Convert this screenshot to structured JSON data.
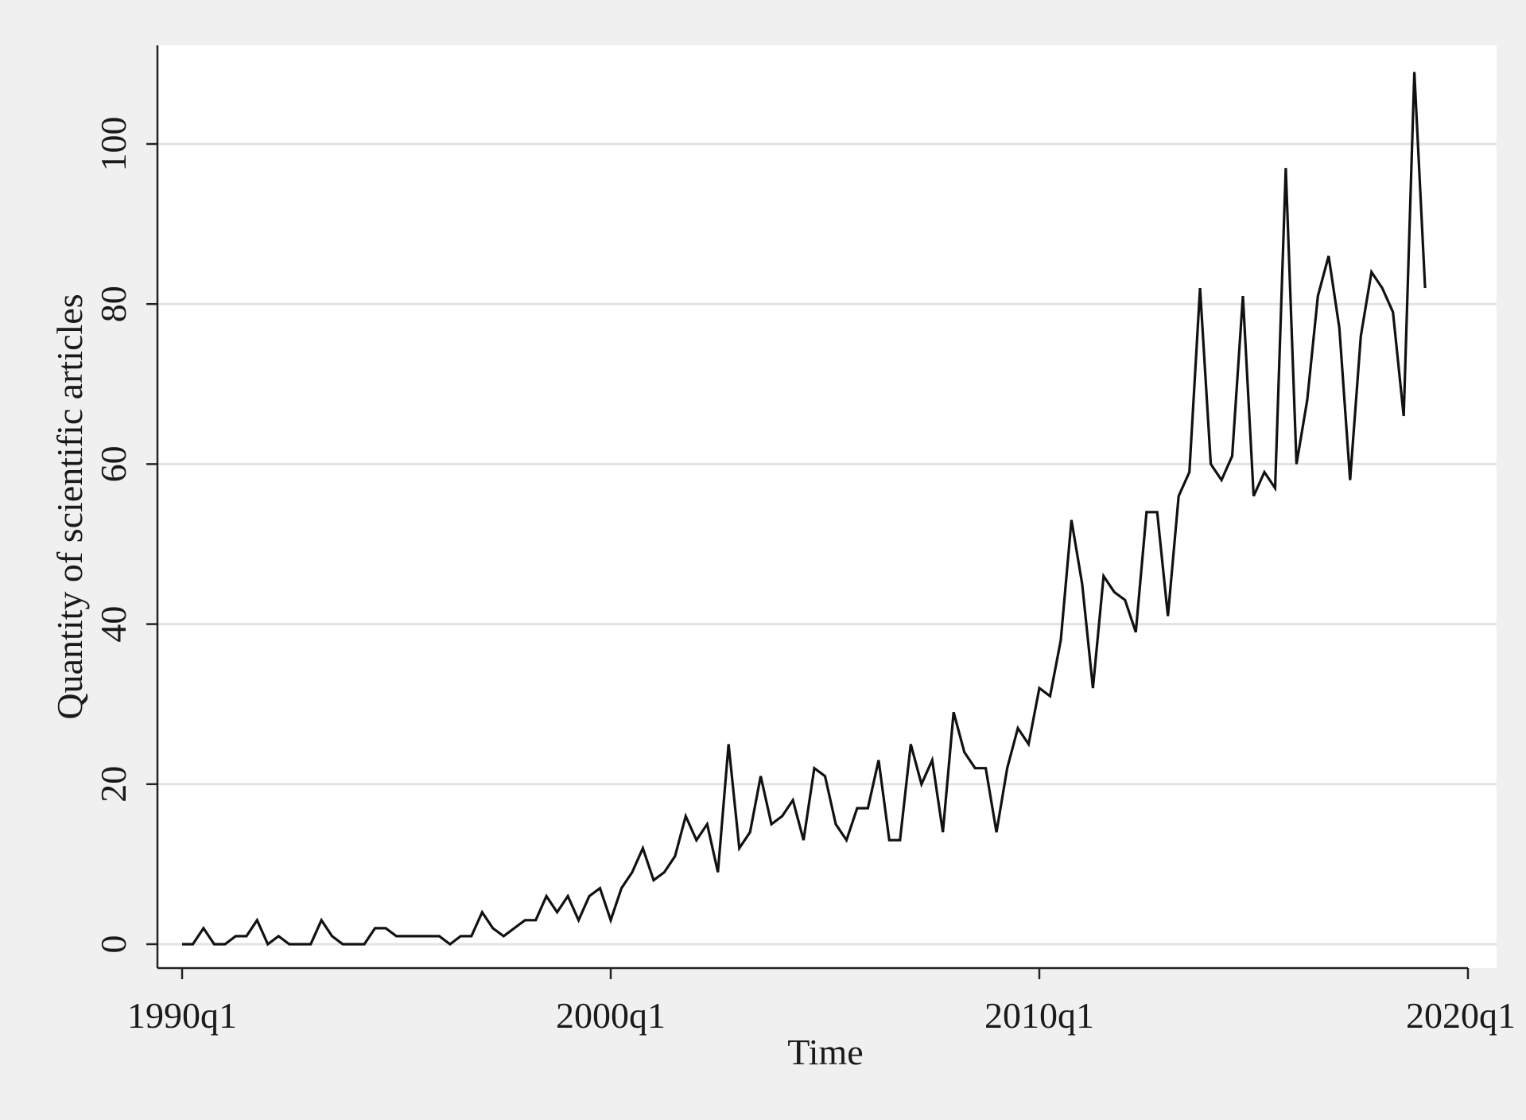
{
  "chart_data": {
    "type": "line",
    "title": "",
    "xlabel": "Time",
    "ylabel": "Quantity of scientific articles",
    "x_ticks": [
      "1990q1",
      "2000q1",
      "2010q1",
      "2020q1"
    ],
    "y_ticks": [
      "0",
      "20",
      "40",
      "60",
      "80",
      "100"
    ],
    "ylim": [
      -3,
      112
    ],
    "xlim": [
      "1989q3",
      "2020q1"
    ],
    "grid": "horizontal",
    "legend": "none",
    "colors": {
      "line": "#111111",
      "grid": "#e3e3e3",
      "plot_bg": "#ffffff",
      "outer_bg": "#f0f0f0"
    },
    "series": [
      {
        "x": [
          "1990q1",
          "1990q2",
          "1990q3",
          "1990q4",
          "1991q1",
          "1991q2",
          "1991q3",
          "1991q4",
          "1992q1",
          "1992q2",
          "1992q3",
          "1992q4",
          "1993q1",
          "1993q2",
          "1993q3",
          "1993q4",
          "1994q1",
          "1994q2",
          "1994q3",
          "1994q4",
          "1995q1",
          "1995q2",
          "1995q3",
          "1995q4",
          "1996q1",
          "1996q2",
          "1996q3",
          "1996q4",
          "1997q1",
          "1997q2",
          "1997q3",
          "1997q4",
          "1998q1",
          "1998q2",
          "1998q3",
          "1998q4",
          "1999q1",
          "1999q2",
          "1999q3",
          "1999q4",
          "2000q1",
          "2000q2",
          "2000q3",
          "2000q4",
          "2001q1",
          "2001q2",
          "2001q3",
          "2001q4",
          "2002q1",
          "2002q2",
          "2002q3",
          "2002q4",
          "2003q1",
          "2003q2",
          "2003q3",
          "2003q4",
          "2004q1",
          "2004q2",
          "2004q3",
          "2004q4",
          "2005q1",
          "2005q2",
          "2005q3",
          "2005q4",
          "2006q1",
          "2006q2",
          "2006q3",
          "2006q4",
          "2007q1",
          "2007q2",
          "2007q3",
          "2007q4",
          "2008q1",
          "2008q2",
          "2008q3",
          "2008q4",
          "2009q1",
          "2009q2",
          "2009q3",
          "2009q4",
          "2010q1",
          "2010q2",
          "2010q3",
          "2010q4",
          "2011q1",
          "2011q2",
          "2011q3",
          "2011q4",
          "2012q1",
          "2012q2",
          "2012q3",
          "2012q4",
          "2013q1",
          "2013q2",
          "2013q3",
          "2013q4",
          "2014q1",
          "2014q2",
          "2014q3",
          "2014q4",
          "2015q1",
          "2015q2",
          "2015q3",
          "2015q4",
          "2016q1",
          "2016q2",
          "2016q3",
          "2016q4",
          "2017q1",
          "2017q2",
          "2017q3",
          "2017q4",
          "2018q1",
          "2018q2",
          "2018q3",
          "2018q4",
          "2019q1"
        ],
        "values": [
          0,
          0,
          2,
          0,
          0,
          1,
          1,
          3,
          0,
          1,
          0,
          0,
          0,
          3,
          1,
          0,
          0,
          0,
          2,
          2,
          1,
          1,
          1,
          1,
          1,
          0,
          1,
          1,
          4,
          2,
          1,
          2,
          3,
          3,
          6,
          4,
          6,
          3,
          6,
          7,
          3,
          7,
          9,
          12,
          8,
          9,
          11,
          16,
          13,
          15,
          9,
          25,
          12,
          14,
          21,
          15,
          16,
          18,
          13,
          22,
          21,
          15,
          13,
          17,
          17,
          23,
          13,
          13,
          25,
          20,
          23,
          14,
          29,
          24,
          22,
          22,
          14,
          22,
          27,
          25,
          32,
          31,
          38,
          53,
          45,
          32,
          46,
          44,
          43,
          39,
          54,
          54,
          41,
          56,
          59,
          82,
          60,
          58,
          61,
          81,
          56,
          59,
          57,
          97,
          60,
          68,
          81,
          86,
          77,
          58,
          76,
          84,
          82,
          79,
          66,
          109,
          82
        ]
      }
    ]
  }
}
